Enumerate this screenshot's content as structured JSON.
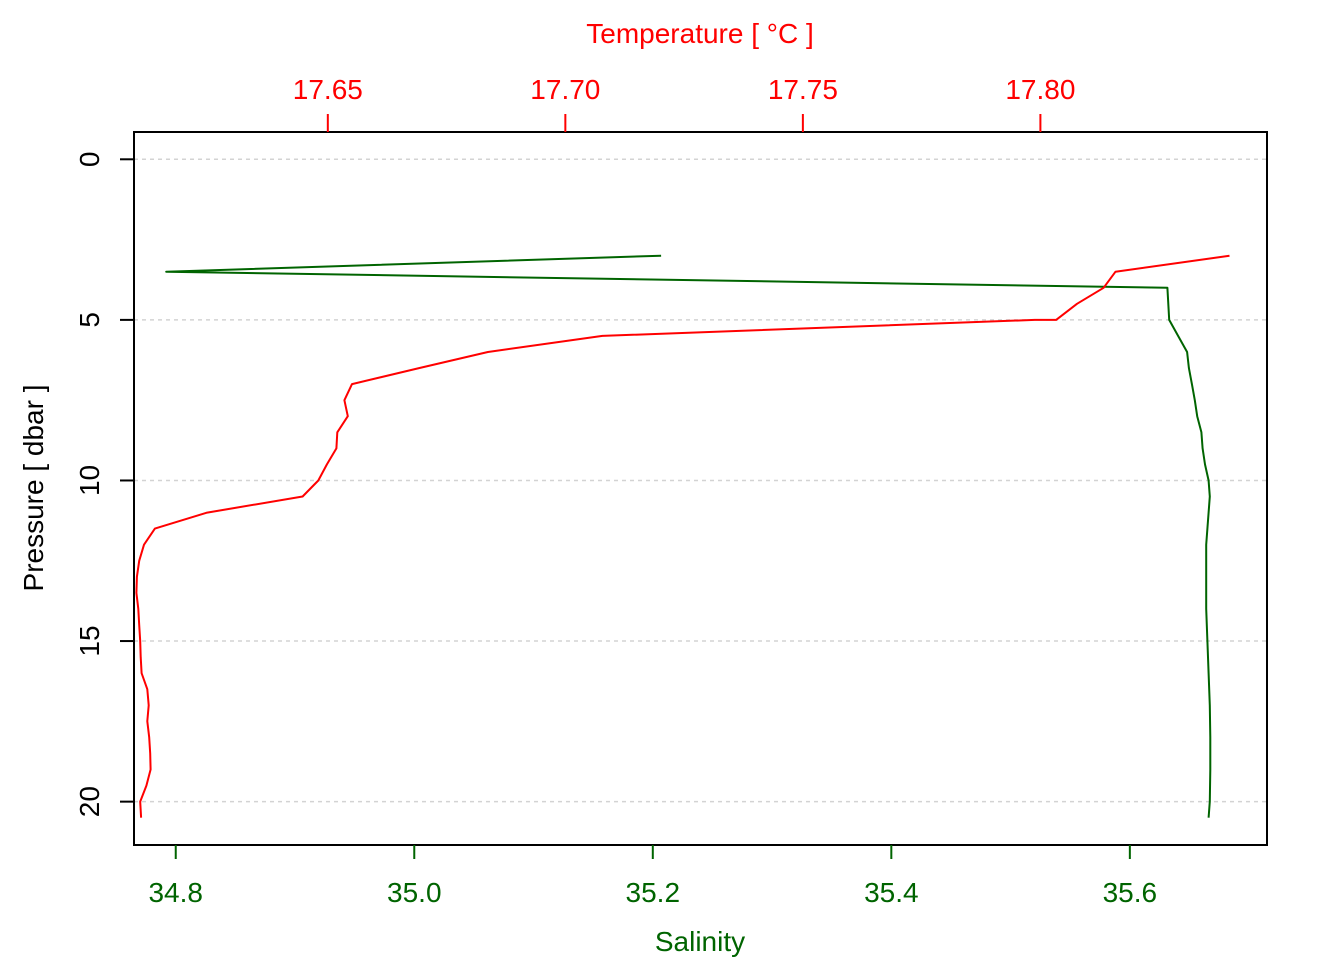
{
  "chart_data": {
    "type": "line",
    "title": "",
    "x_bottom": {
      "label": "Salinity",
      "range": [
        34.765,
        35.715
      ],
      "ticks": [
        34.8,
        35.0,
        35.2,
        35.4,
        35.6
      ],
      "tick_labels": [
        "34.8",
        "35.0",
        "35.2",
        "35.4",
        "35.6"
      ],
      "color": "#006400"
    },
    "x_top": {
      "label": "Temperature [ °C ]",
      "range": [
        17.6092,
        17.8477
      ],
      "ticks": [
        17.65,
        17.7,
        17.75,
        17.8
      ],
      "tick_labels": [
        "17.65",
        "17.70",
        "17.75",
        "17.80"
      ],
      "color": "#ff0000"
    },
    "y": {
      "label": "Pressure [ dbar ]",
      "range": [
        -0.85,
        21.35
      ],
      "reversed": true,
      "ticks": [
        0,
        5,
        10,
        15,
        20
      ],
      "tick_labels": [
        "0",
        "5",
        "10",
        "15",
        "20"
      ],
      "color": "#000000"
    },
    "grid": true,
    "series": [
      {
        "axis": "x_bottom",
        "color": "#006400",
        "points": [
          [
            35.207,
            3.0
          ],
          [
            34.792,
            3.5
          ],
          [
            35.6315,
            4.0
          ],
          [
            35.633,
            5.0
          ],
          [
            35.6405,
            5.5
          ],
          [
            35.648,
            6.0
          ],
          [
            35.6495,
            6.5
          ],
          [
            35.652,
            7.0
          ],
          [
            35.6545,
            7.5
          ],
          [
            35.6565,
            8.0
          ],
          [
            35.66,
            8.5
          ],
          [
            35.661,
            9.0
          ],
          [
            35.663,
            9.5
          ],
          [
            35.666,
            10.0
          ],
          [
            35.667,
            10.5
          ],
          [
            35.666,
            11.0
          ],
          [
            35.665,
            11.5
          ],
          [
            35.664,
            12.0
          ],
          [
            35.664,
            13.0
          ],
          [
            35.664,
            14.0
          ],
          [
            35.665,
            15.0
          ],
          [
            35.666,
            16.0
          ],
          [
            35.667,
            17.0
          ],
          [
            35.6675,
            18.0
          ],
          [
            35.6675,
            19.0
          ],
          [
            35.667,
            20.0
          ],
          [
            35.666,
            20.5
          ]
        ]
      },
      {
        "axis": "x_top",
        "color": "#ff0000",
        "points": [
          [
            17.8398,
            3.0
          ],
          [
            17.8158,
            3.5
          ],
          [
            17.8133,
            4.0
          ],
          [
            17.8077,
            4.5
          ],
          [
            17.8033,
            5.0
          ],
          [
            17.7988,
            5.0
          ],
          [
            17.7078,
            5.5
          ],
          [
            17.6837,
            6.0
          ],
          [
            17.6692,
            6.5
          ],
          [
            17.6551,
            7.0
          ],
          [
            17.6535,
            7.5
          ],
          [
            17.6542,
            8.0
          ],
          [
            17.652,
            8.5
          ],
          [
            17.6518,
            9.0
          ],
          [
            17.6498,
            9.5
          ],
          [
            17.648,
            10.0
          ],
          [
            17.6447,
            10.5
          ],
          [
            17.6246,
            11.0
          ],
          [
            17.6136,
            11.5
          ],
          [
            17.6113,
            12.0
          ],
          [
            17.6103,
            12.5
          ],
          [
            17.6098,
            13.0
          ],
          [
            17.6097,
            13.5
          ],
          [
            17.6101,
            14.0
          ],
          [
            17.6103,
            14.5
          ],
          [
            17.6105,
            15.0
          ],
          [
            17.6106,
            15.5
          ],
          [
            17.6108,
            16.0
          ],
          [
            17.612,
            16.5
          ],
          [
            17.6123,
            17.0
          ],
          [
            17.612,
            17.5
          ],
          [
            17.6124,
            18.0
          ],
          [
            17.6126,
            18.5
          ],
          [
            17.6127,
            19.0
          ],
          [
            17.6118,
            19.5
          ],
          [
            17.6105,
            20.0
          ],
          [
            17.6107,
            20.5
          ]
        ]
      }
    ]
  }
}
